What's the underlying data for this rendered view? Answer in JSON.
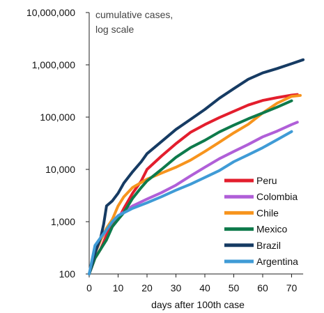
{
  "chart_data": {
    "type": "line",
    "title": "",
    "annotation": [
      "cumulative cases,",
      "log scale"
    ],
    "xlabel": "days after 100th case",
    "ylabel": "",
    "xlim": [
      0,
      75
    ],
    "ylim": [
      100,
      10000000
    ],
    "yscale": "log",
    "grid": false,
    "legend_position": "bottom-right",
    "x_ticks": [
      0,
      10,
      20,
      30,
      40,
      50,
      60,
      70
    ],
    "x_tick_labels": [
      "0",
      "10",
      "20",
      "30",
      "40",
      "50",
      "60",
      "70"
    ],
    "y_ticks": [
      100,
      1000,
      10000,
      100000,
      1000000,
      10000000
    ],
    "y_tick_labels": [
      "100",
      "1,000",
      "10,000",
      "100,000",
      "1,000,000",
      "10,000,000"
    ],
    "series": [
      {
        "name": "Peru",
        "color": "#e31e2d",
        "x": [
          0,
          2,
          4,
          6,
          8,
          10,
          12,
          15,
          18,
          20,
          25,
          30,
          35,
          40,
          45,
          50,
          55,
          60,
          65,
          70,
          72
        ],
        "values": [
          100,
          200,
          300,
          550,
          900,
          1100,
          1800,
          3500,
          6000,
          10000,
          18000,
          31000,
          51000,
          72000,
          98000,
          129000,
          170000,
          208000,
          236000,
          263000,
          270000
        ]
      },
      {
        "name": "Colombia",
        "color": "#b05fd8",
        "x": [
          0,
          2,
          4,
          6,
          8,
          10,
          15,
          20,
          25,
          30,
          35,
          40,
          45,
          50,
          55,
          60,
          65,
          70,
          72
        ],
        "values": [
          100,
          250,
          450,
          700,
          1000,
          1300,
          2000,
          2700,
          3600,
          5000,
          7500,
          11000,
          16000,
          22000,
          30000,
          42000,
          54000,
          72000,
          80000
        ]
      },
      {
        "name": "Chile",
        "color": "#f7941d",
        "x": [
          0,
          2,
          4,
          6,
          8,
          10,
          12,
          15,
          20,
          25,
          30,
          35,
          40,
          45,
          50,
          55,
          60,
          65,
          70,
          73
        ],
        "values": [
          100,
          250,
          450,
          750,
          1100,
          2000,
          3000,
          4500,
          6500,
          8500,
          11000,
          15000,
          22000,
          33000,
          50000,
          73000,
          120000,
          185000,
          250000,
          260000
        ]
      },
      {
        "name": "Mexico",
        "color": "#0e7a4b",
        "x": [
          0,
          2,
          4,
          6,
          8,
          10,
          12,
          15,
          18,
          20,
          25,
          30,
          35,
          40,
          45,
          50,
          55,
          60,
          65,
          70
        ],
        "values": [
          100,
          200,
          300,
          450,
          800,
          1100,
          1500,
          2800,
          4500,
          6000,
          10000,
          17000,
          26000,
          36000,
          52000,
          70000,
          93000,
          120000,
          155000,
          205000
        ]
      },
      {
        "name": "Brazil",
        "color": "#163b63",
        "x": [
          0,
          2,
          4,
          5,
          6,
          8,
          10,
          12,
          15,
          18,
          20,
          25,
          30,
          35,
          40,
          45,
          50,
          55,
          60,
          65,
          70,
          74
        ],
        "values": [
          100,
          250,
          500,
          900,
          2000,
          2500,
          3500,
          5500,
          9000,
          14000,
          20000,
          34000,
          58000,
          90000,
          140000,
          230000,
          350000,
          530000,
          700000,
          850000,
          1050000,
          1250000
        ]
      },
      {
        "name": "Argentina",
        "color": "#3f9bd6",
        "x": [
          0,
          2,
          4,
          6,
          8,
          10,
          15,
          20,
          25,
          30,
          35,
          40,
          45,
          50,
          55,
          60,
          65,
          70
        ],
        "values": [
          100,
          350,
          500,
          700,
          1000,
          1300,
          1800,
          2300,
          3000,
          4000,
          5200,
          7000,
          9500,
          14000,
          19000,
          26000,
          37000,
          53000
        ]
      }
    ]
  }
}
